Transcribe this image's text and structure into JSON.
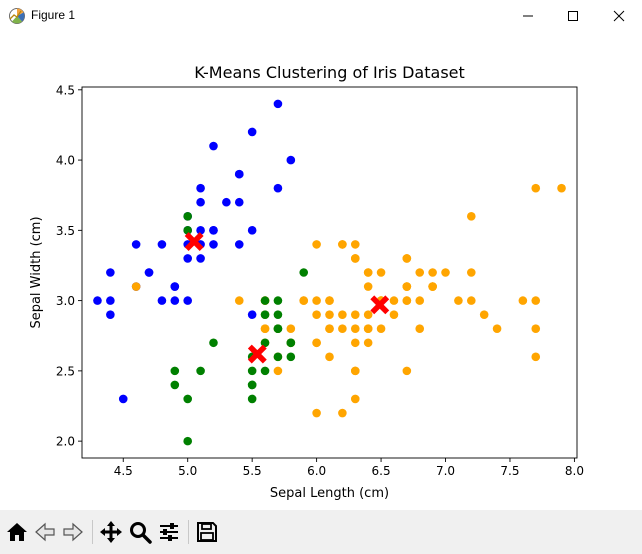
{
  "window": {
    "title": "Figure 1",
    "icon": "matplotlib-figure-icon",
    "controls": [
      "minimize-icon",
      "maximize-icon",
      "close-icon"
    ]
  },
  "toolbar": {
    "buttons": [
      {
        "name": "home-icon",
        "tooltip": "Reset original view"
      },
      {
        "name": "back-arrow-icon",
        "tooltip": "Back to previous view"
      },
      {
        "name": "forward-arrow-icon",
        "tooltip": "Forward to next view"
      },
      {
        "name": "pan-move-icon",
        "tooltip": "Pan axes"
      },
      {
        "name": "zoom-magnifier-icon",
        "tooltip": "Zoom to rectangle"
      },
      {
        "name": "configure-subplots-icon",
        "tooltip": "Configure subplots"
      },
      {
        "name": "save-floppy-icon",
        "tooltip": "Save the figure"
      }
    ],
    "message": ""
  },
  "chart_data": {
    "type": "scatter",
    "title": "K-Means Clustering of Iris Dataset",
    "xlabel": "Sepal Length (cm)",
    "ylabel": "Sepal Width (cm)",
    "xlim": [
      4.18,
      8.02
    ],
    "ylim": [
      1.88,
      4.52
    ],
    "xticks": [
      4.5,
      5.0,
      5.5,
      6.0,
      6.5,
      7.0,
      7.5,
      8.0
    ],
    "yticks": [
      2.0,
      2.5,
      3.0,
      3.5,
      4.0,
      4.5
    ],
    "xtick_labels": [
      "4.5",
      "5.0",
      "5.5",
      "6.0",
      "6.5",
      "7.0",
      "7.5",
      "8.0"
    ],
    "ytick_labels": [
      "2.0",
      "2.5",
      "3.0",
      "3.5",
      "4.0",
      "4.5"
    ],
    "grid": false,
    "legend": false,
    "series": [
      {
        "color": "#0000ff",
        "marker": "circle",
        "points": [
          [
            5.1,
            3.5
          ],
          [
            4.9,
            3.0
          ],
          [
            4.7,
            3.2
          ],
          [
            4.6,
            3.1
          ],
          [
            5.0,
            3.6
          ],
          [
            5.4,
            3.9
          ],
          [
            4.6,
            3.4
          ],
          [
            5.0,
            3.4
          ],
          [
            4.4,
            2.9
          ],
          [
            4.9,
            3.1
          ],
          [
            5.4,
            3.7
          ],
          [
            4.8,
            3.4
          ],
          [
            4.8,
            3.0
          ],
          [
            4.3,
            3.0
          ],
          [
            5.8,
            4.0
          ],
          [
            5.7,
            4.4
          ],
          [
            5.7,
            3.8
          ],
          [
            5.1,
            3.8
          ],
          [
            5.2,
            4.1
          ],
          [
            5.5,
            4.2
          ],
          [
            5.5,
            3.5
          ],
          [
            4.4,
            3.0
          ],
          [
            4.4,
            3.2
          ],
          [
            5.0,
            3.5
          ],
          [
            5.1,
            3.4
          ],
          [
            4.5,
            2.3
          ],
          [
            5.3,
            3.7
          ],
          [
            5.2,
            3.5
          ],
          [
            5.1,
            3.3
          ],
          [
            5.0,
            3.3
          ],
          [
            5.2,
            3.4
          ],
          [
            4.7,
            3.2
          ],
          [
            5.4,
            3.4
          ],
          [
            5.1,
            3.7
          ],
          [
            5.4,
            3.9
          ],
          [
            5.0,
            3.0
          ],
          [
            4.9,
            3.1
          ],
          [
            5.5,
            2.9
          ],
          [
            5.2,
            3.5
          ]
        ]
      },
      {
        "color": "#ffa500",
        "marker": "circle",
        "points": [
          [
            7.0,
            3.2
          ],
          [
            6.4,
            3.2
          ],
          [
            6.9,
            3.1
          ],
          [
            6.5,
            2.8
          ],
          [
            6.3,
            3.3
          ],
          [
            6.6,
            2.9
          ],
          [
            5.9,
            3.0
          ],
          [
            6.0,
            2.2
          ],
          [
            6.1,
            2.9
          ],
          [
            6.7,
            3.1
          ],
          [
            5.6,
            3.0
          ],
          [
            6.2,
            2.2
          ],
          [
            6.1,
            2.8
          ],
          [
            6.3,
            2.5
          ],
          [
            6.4,
            2.9
          ],
          [
            6.6,
            3.0
          ],
          [
            6.8,
            2.8
          ],
          [
            6.7,
            3.0
          ],
          [
            6.0,
            2.9
          ],
          [
            5.7,
            2.6
          ],
          [
            6.0,
            2.7
          ],
          [
            5.4,
            3.0
          ],
          [
            6.0,
            3.4
          ],
          [
            6.7,
            3.1
          ],
          [
            6.3,
            2.3
          ],
          [
            5.6,
            2.8
          ],
          [
            6.1,
            3.0
          ],
          [
            5.8,
            2.7
          ],
          [
            7.1,
            3.0
          ],
          [
            6.3,
            2.9
          ],
          [
            6.5,
            3.0
          ],
          [
            7.6,
            3.0
          ],
          [
            7.3,
            2.9
          ],
          [
            6.7,
            2.5
          ],
          [
            7.2,
            3.6
          ],
          [
            6.5,
            3.2
          ],
          [
            6.4,
            2.7
          ],
          [
            6.8,
            3.0
          ],
          [
            5.7,
            2.5
          ],
          [
            5.8,
            2.8
          ],
          [
            6.4,
            3.2
          ],
          [
            6.5,
            3.0
          ],
          [
            7.7,
            3.8
          ],
          [
            7.7,
            2.6
          ],
          [
            6.9,
            3.2
          ],
          [
            5.6,
            2.8
          ],
          [
            7.7,
            2.8
          ],
          [
            6.3,
            2.7
          ],
          [
            6.7,
            3.3
          ],
          [
            7.2,
            3.2
          ],
          [
            6.2,
            2.8
          ],
          [
            6.1,
            3.0
          ],
          [
            6.4,
            2.8
          ],
          [
            7.2,
            3.0
          ],
          [
            7.4,
            2.8
          ],
          [
            7.9,
            3.8
          ],
          [
            6.4,
            2.8
          ],
          [
            6.3,
            2.8
          ],
          [
            6.1,
            2.6
          ],
          [
            7.7,
            3.0
          ],
          [
            6.3,
            3.4
          ],
          [
            6.4,
            3.1
          ],
          [
            6.0,
            3.0
          ],
          [
            6.9,
            3.1
          ],
          [
            6.7,
            3.1
          ],
          [
            6.9,
            3.1
          ],
          [
            6.8,
            3.2
          ],
          [
            6.7,
            3.3
          ],
          [
            6.7,
            3.0
          ],
          [
            6.3,
            2.5
          ],
          [
            6.5,
            3.0
          ],
          [
            6.2,
            3.4
          ],
          [
            5.9,
            3.0
          ],
          [
            5.6,
            3.0
          ],
          [
            5.8,
            2.7
          ],
          [
            6.0,
            2.7
          ],
          [
            5.6,
            2.7
          ],
          [
            6.2,
            2.9
          ],
          [
            5.7,
            2.8
          ],
          [
            6.3,
            3.3
          ],
          [
            5.6,
            2.9
          ],
          [
            4.6,
            3.1
          ],
          [
            6.1,
            2.8
          ],
          [
            6.2,
            3.4
          ]
        ]
      },
      {
        "color": "#008000",
        "marker": "circle",
        "points": [
          [
            5.5,
            2.3
          ],
          [
            5.7,
            2.8
          ],
          [
            4.9,
            2.4
          ],
          [
            5.2,
            2.7
          ],
          [
            5.0,
            2.0
          ],
          [
            5.9,
            3.2
          ],
          [
            5.6,
            2.9
          ],
          [
            5.8,
            2.7
          ],
          [
            5.5,
            2.4
          ],
          [
            5.5,
            2.4
          ],
          [
            5.8,
            2.7
          ],
          [
            5.5,
            2.5
          ],
          [
            5.0,
            2.3
          ],
          [
            5.6,
            2.7
          ],
          [
            5.7,
            3.0
          ],
          [
            5.7,
            2.9
          ],
          [
            5.1,
            2.5
          ],
          [
            5.7,
            2.8
          ],
          [
            4.9,
            2.5
          ],
          [
            5.8,
            2.6
          ],
          [
            5.5,
            2.6
          ],
          [
            5.6,
            2.5
          ],
          [
            5.7,
            2.6
          ],
          [
            5.0,
            3.6
          ],
          [
            5.0,
            3.5
          ],
          [
            5.6,
            3.0
          ]
        ]
      }
    ],
    "centroids": {
      "color": "#ff0000",
      "marker": "X",
      "points": [
        [
          5.05,
          3.42
        ],
        [
          6.49,
          2.97
        ],
        [
          5.54,
          2.62
        ]
      ]
    }
  }
}
